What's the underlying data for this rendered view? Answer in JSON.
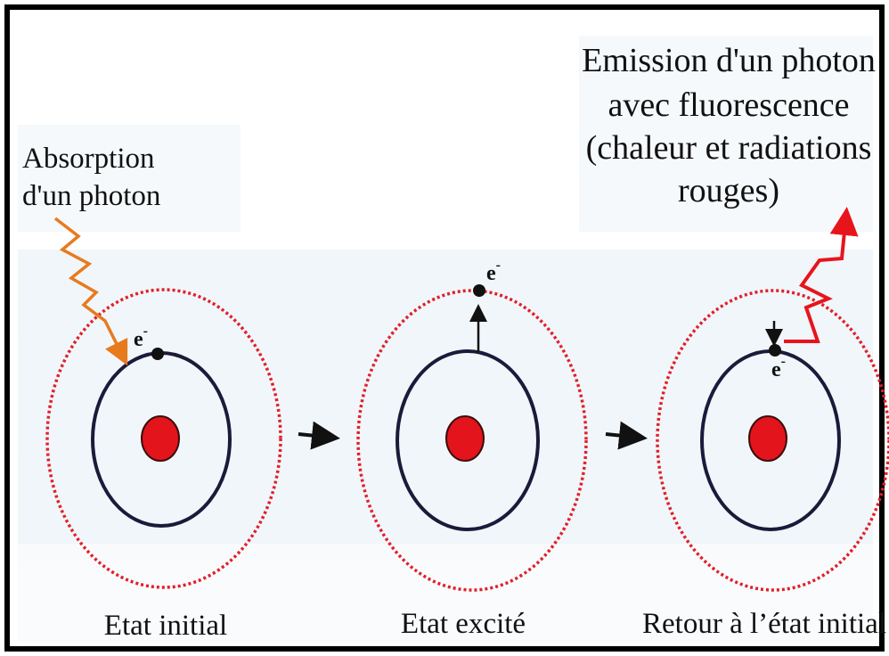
{
  "absorption": {
    "lines": [
      "Absorption",
      "d'un photon"
    ]
  },
  "emission": {
    "lines": [
      "Emission d'un photon",
      "avec fluorescence",
      "(chaleur et radiations",
      "rouges)"
    ]
  },
  "electron": {
    "symbol": "e",
    "charge": "-"
  },
  "states": [
    {
      "label": "Etat initial"
    },
    {
      "label": "Etat excité"
    },
    {
      "label": "Retour à l’état initial"
    }
  ]
}
